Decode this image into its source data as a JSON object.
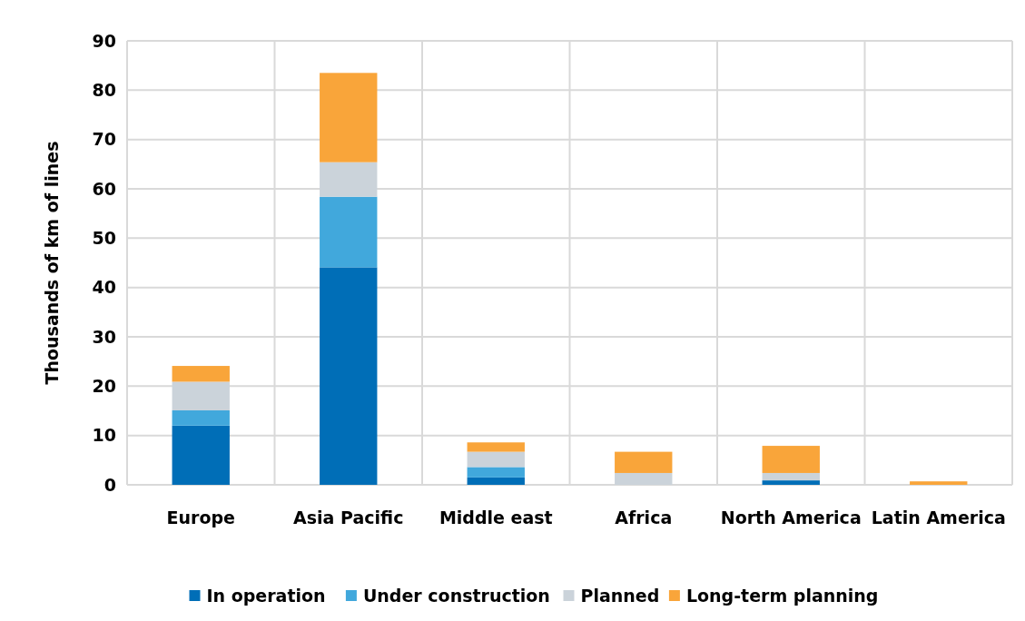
{
  "chart_data": {
    "type": "bar",
    "stacked": true,
    "ylabel": "Thousands of km of lines",
    "categories": [
      "Europe",
      "Asia Pacific",
      "Middle east",
      "Africa",
      "North America",
      "Latin America"
    ],
    "series": [
      {
        "name": "In operation",
        "color": "#006eb7",
        "values": [
          12.0,
          44.1,
          1.5,
          0,
          0.9,
          0
        ]
      },
      {
        "name": "Under construction",
        "color": "#41a8dc",
        "values": [
          3.1,
          14.3,
          2.1,
          0,
          0,
          0
        ]
      },
      {
        "name": "Planned",
        "color": "#cbd3da",
        "values": [
          5.8,
          7.0,
          3.1,
          2.4,
          1.5,
          0
        ]
      },
      {
        "name": "Long-term planning",
        "color": "#f9a53a",
        "values": [
          3.2,
          18.1,
          1.9,
          4.3,
          5.5,
          0.7
        ]
      }
    ],
    "ylim": [
      0,
      90
    ],
    "yticks": [
      0,
      10,
      20,
      30,
      40,
      50,
      60,
      70,
      80,
      90
    ],
    "grid": true,
    "legend": "bottom"
  }
}
